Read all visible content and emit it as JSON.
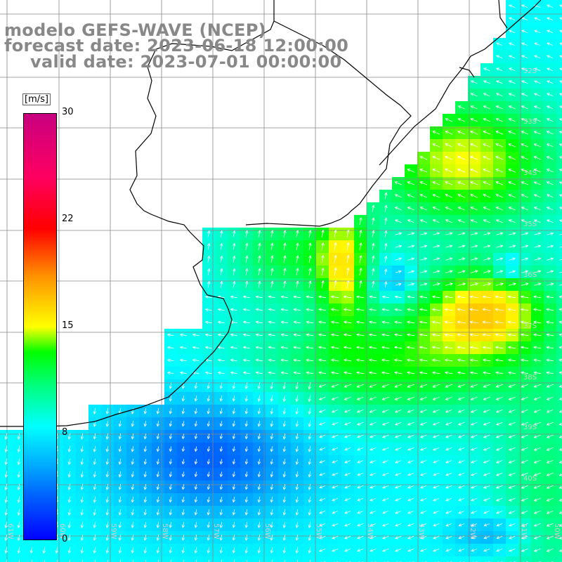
{
  "title": {
    "line1": "modelo GEFS-WAVE (NCEP)",
    "line2": "forecast date: 2023-06-18 12:00:00",
    "line3": "valid date: 2023-07-01 00:00:00"
  },
  "colorbar": {
    "unit": "[m/s]",
    "min": 0,
    "max": 30,
    "ticks": [
      "30",
      "22",
      "15",
      "8",
      "0"
    ],
    "tick_values": [
      30,
      22,
      15,
      8,
      0
    ]
  },
  "lat_labels": [
    "32S",
    "33S",
    "34S",
    "35S",
    "36S",
    "37S",
    "38S",
    "39S",
    "40S"
  ],
  "lon_labels": [
    "61W",
    "60W",
    "59W",
    "58W",
    "57W",
    "56W",
    "55W",
    "54W",
    "53W",
    "52W",
    "51W",
    "50W"
  ],
  "colors": {
    "land": "#ffffff",
    "grid": "#888888",
    "coast": "#000000",
    "arrows": "#ffffff",
    "title": "#888888"
  }
}
